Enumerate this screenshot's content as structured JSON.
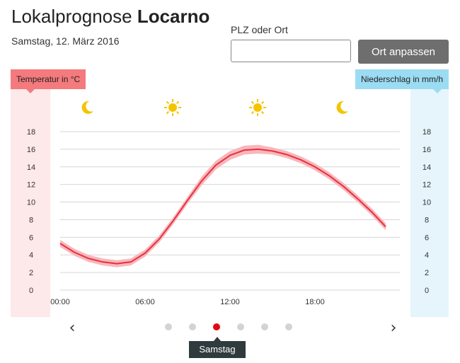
{
  "header": {
    "title_prefix": "Lokalprognose",
    "location": "Locarno",
    "date": "Samstag, 12. März 2016"
  },
  "search": {
    "label": "PLZ oder Ort",
    "value": "",
    "placeholder": "",
    "button_label": "Ort anpassen"
  },
  "legend": {
    "temperature": "Temperatur in °C",
    "precipitation": "Niederschlag in mm/h"
  },
  "weather_icons": [
    "moon-icon",
    "sun-icon",
    "sun-icon",
    "moon-icon"
  ],
  "colors": {
    "temperature_line": "#e8303d",
    "temperature_band": "#f7b7bc",
    "temperature_axis_bg": "#fde8ea",
    "precipitation_axis_bg": "#e5f5fb",
    "active_dot": "#e30613",
    "icon_yellow": "#f5c400"
  },
  "chart_data": {
    "type": "line",
    "title": "",
    "xlabel": "",
    "ylabel": "Temperatur in °C",
    "y2label": "Niederschlag in mm/h",
    "x_ticks": [
      "00:00",
      "06:00",
      "12:00",
      "18:00"
    ],
    "y_ticks": [
      0,
      2,
      4,
      6,
      8,
      10,
      12,
      14,
      16,
      18
    ],
    "y2_ticks": [
      0,
      2,
      4,
      6,
      8,
      10,
      12,
      14,
      16,
      18
    ],
    "ylim": [
      0,
      18
    ],
    "xlim_hours": [
      0,
      24
    ],
    "grid": true,
    "series": [
      {
        "name": "Temperatur in °C",
        "x_hours": [
          0,
          1,
          2,
          3,
          4,
          5,
          6,
          7,
          8,
          9,
          10,
          11,
          12,
          13,
          14,
          15,
          16,
          17,
          18,
          19,
          20,
          21,
          22,
          23
        ],
        "values": [
          5.3,
          4.3,
          3.6,
          3.2,
          3.0,
          3.2,
          4.2,
          5.8,
          7.9,
          10.2,
          12.4,
          14.2,
          15.3,
          15.9,
          16.0,
          15.8,
          15.4,
          14.8,
          14.0,
          13.0,
          11.8,
          10.4,
          8.9,
          7.2
        ],
        "band_lower": [
          4.9,
          3.9,
          3.2,
          2.8,
          2.6,
          2.8,
          3.8,
          5.4,
          7.5,
          9.8,
          11.9,
          13.7,
          14.8,
          15.4,
          15.5,
          15.4,
          15.0,
          14.4,
          13.6,
          12.6,
          11.4,
          10.0,
          8.5,
          6.8
        ],
        "band_upper": [
          5.7,
          4.7,
          4.0,
          3.6,
          3.4,
          3.6,
          4.6,
          6.2,
          8.3,
          10.6,
          12.9,
          14.7,
          15.8,
          16.4,
          16.5,
          16.2,
          15.8,
          15.2,
          14.4,
          13.4,
          12.2,
          10.8,
          9.3,
          7.6
        ]
      }
    ]
  },
  "pagination": {
    "dot_count": 6,
    "active_index": 2,
    "tooltip": "Samstag"
  }
}
